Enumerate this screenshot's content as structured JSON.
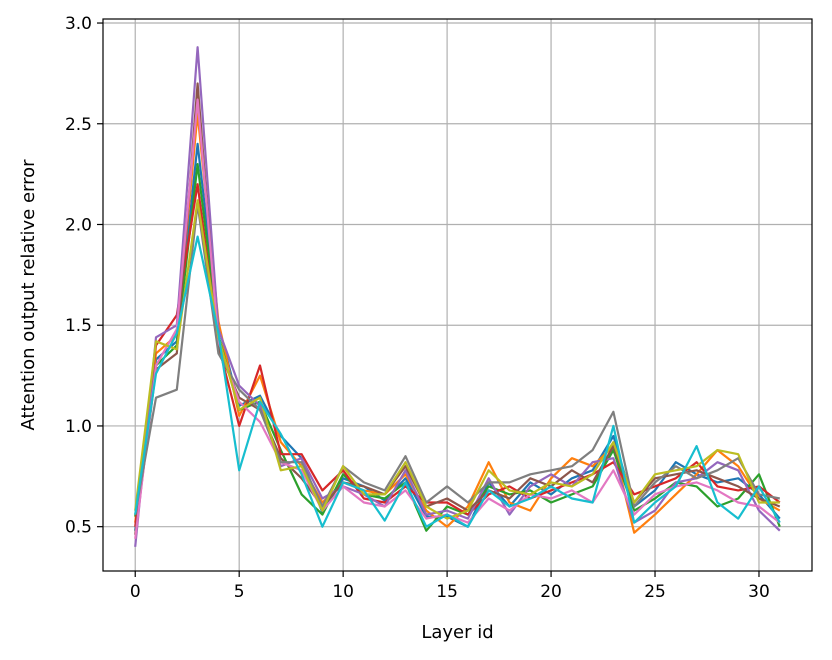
{
  "chart_data": {
    "type": "line",
    "title": "",
    "xlabel": "Layer id",
    "ylabel": "Attention output relative error",
    "xlim": [
      -1.55,
      32.55
    ],
    "ylim": [
      0.28,
      3.02
    ],
    "xticks": [
      0,
      5,
      10,
      15,
      20,
      25,
      30
    ],
    "xtick_labels": [
      "0",
      "5",
      "10",
      "15",
      "20",
      "25",
      "30"
    ],
    "yticks": [
      0.5,
      1.0,
      1.5,
      2.0,
      2.5,
      3.0
    ],
    "ytick_labels": [
      "0.5",
      "1.0",
      "1.5",
      "2.0",
      "2.5",
      "3.0"
    ],
    "grid": true,
    "legend": "none",
    "x": [
      0,
      1,
      2,
      3,
      4,
      5,
      6,
      7,
      8,
      9,
      10,
      11,
      12,
      13,
      14,
      15,
      16,
      17,
      18,
      19,
      20,
      21,
      22,
      23,
      24,
      25,
      26,
      27,
      28,
      29,
      30,
      31
    ],
    "series": [
      {
        "color": "#1f77b4",
        "values": [
          0.48,
          1.33,
          1.42,
          2.4,
          1.5,
          1.1,
          1.15,
          0.95,
          0.84,
          0.57,
          0.74,
          0.7,
          0.63,
          0.74,
          0.55,
          0.55,
          0.5,
          0.72,
          0.6,
          0.72,
          0.66,
          0.74,
          0.78,
          0.95,
          0.6,
          0.68,
          0.82,
          0.76,
          0.72,
          0.74,
          0.66,
          0.54
        ]
      },
      {
        "color": "#ff7f0e",
        "values": [
          0.52,
          1.36,
          1.45,
          2.55,
          1.52,
          1.05,
          1.25,
          0.92,
          0.8,
          0.62,
          0.72,
          0.68,
          0.66,
          0.76,
          0.58,
          0.5,
          0.6,
          0.82,
          0.62,
          0.58,
          0.74,
          0.84,
          0.8,
          0.9,
          0.47,
          0.56,
          0.66,
          0.76,
          0.88,
          0.8,
          0.64,
          0.58
        ]
      },
      {
        "color": "#2ca02c",
        "values": [
          0.55,
          1.3,
          1.4,
          2.3,
          1.45,
          1.08,
          1.12,
          0.88,
          0.66,
          0.56,
          0.76,
          0.66,
          0.64,
          0.72,
          0.48,
          0.6,
          0.56,
          0.7,
          0.66,
          0.68,
          0.62,
          0.66,
          0.7,
          0.88,
          0.58,
          0.64,
          0.72,
          0.7,
          0.6,
          0.64,
          0.76,
          0.5
        ]
      },
      {
        "color": "#d62728",
        "values": [
          0.5,
          1.4,
          1.55,
          2.2,
          1.4,
          1.0,
          1.3,
          0.86,
          0.86,
          0.68,
          0.78,
          0.64,
          0.62,
          0.7,
          0.62,
          0.62,
          0.56,
          0.66,
          0.7,
          0.64,
          0.68,
          0.72,
          0.76,
          0.82,
          0.66,
          0.7,
          0.74,
          0.82,
          0.7,
          0.68,
          0.7,
          0.62
        ]
      },
      {
        "color": "#9467bd",
        "values": [
          0.4,
          1.44,
          1.5,
          2.88,
          1.48,
          1.2,
          1.1,
          0.8,
          0.84,
          0.64,
          0.7,
          0.66,
          0.6,
          0.78,
          0.56,
          0.58,
          0.54,
          0.74,
          0.56,
          0.7,
          0.76,
          0.7,
          0.82,
          0.84,
          0.52,
          0.58,
          0.72,
          0.74,
          0.82,
          0.78,
          0.58,
          0.48
        ]
      },
      {
        "color": "#8c564b",
        "values": [
          0.46,
          1.28,
          1.36,
          2.7,
          1.38,
          1.14,
          1.08,
          0.84,
          0.74,
          0.6,
          0.72,
          0.7,
          0.66,
          0.8,
          0.6,
          0.64,
          0.58,
          0.68,
          0.64,
          0.74,
          0.7,
          0.78,
          0.72,
          0.9,
          0.62,
          0.74,
          0.76,
          0.78,
          0.74,
          0.7,
          0.64,
          0.6
        ]
      },
      {
        "color": "#e377c2",
        "values": [
          0.44,
          1.3,
          1.48,
          2.62,
          1.42,
          1.12,
          1.02,
          0.82,
          0.78,
          0.58,
          0.7,
          0.62,
          0.6,
          0.68,
          0.54,
          0.56,
          0.52,
          0.64,
          0.58,
          0.66,
          0.64,
          0.68,
          0.62,
          0.78,
          0.56,
          0.66,
          0.7,
          0.72,
          0.68,
          0.62,
          0.6,
          0.52
        ]
      },
      {
        "color": "#7f7f7f",
        "values": [
          0.56,
          1.14,
          1.18,
          2.1,
          1.36,
          1.18,
          1.08,
          0.82,
          0.82,
          0.6,
          0.8,
          0.72,
          0.68,
          0.85,
          0.62,
          0.7,
          0.62,
          0.72,
          0.72,
          0.76,
          0.78,
          0.8,
          0.88,
          1.07,
          0.6,
          0.72,
          0.8,
          0.74,
          0.78,
          0.84,
          0.66,
          0.64
        ]
      },
      {
        "color": "#bcbd22",
        "values": [
          0.58,
          1.42,
          1.38,
          2.12,
          1.44,
          1.08,
          1.14,
          0.78,
          0.8,
          0.58,
          0.8,
          0.66,
          0.66,
          0.82,
          0.6,
          0.54,
          0.58,
          0.78,
          0.68,
          0.66,
          0.72,
          0.7,
          0.76,
          0.92,
          0.62,
          0.76,
          0.78,
          0.8,
          0.88,
          0.86,
          0.62,
          0.62
        ]
      },
      {
        "color": "#17becf",
        "values": [
          0.56,
          1.26,
          1.46,
          1.94,
          1.46,
          0.78,
          1.12,
          0.96,
          0.76,
          0.5,
          0.72,
          0.68,
          0.53,
          0.72,
          0.5,
          0.56,
          0.5,
          0.68,
          0.6,
          0.64,
          0.7,
          0.64,
          0.62,
          1.0,
          0.52,
          0.62,
          0.7,
          0.9,
          0.62,
          0.54,
          0.7,
          0.52
        ]
      }
    ]
  }
}
